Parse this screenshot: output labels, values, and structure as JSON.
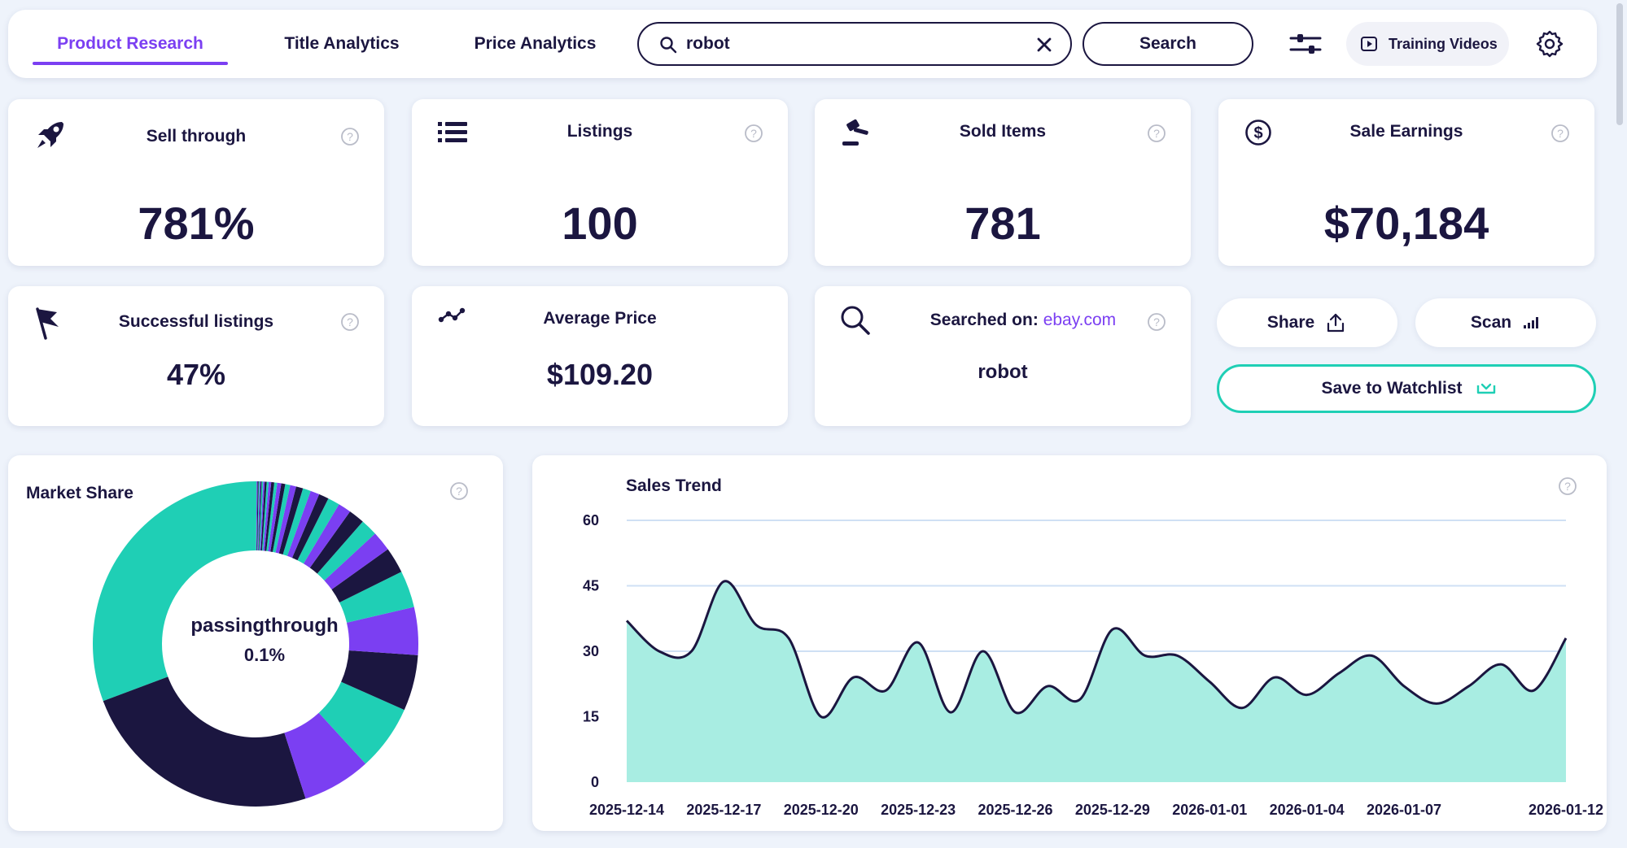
{
  "tabs": [
    {
      "label": "Product Research",
      "active": true
    },
    {
      "label": "Title Analytics",
      "active": false
    },
    {
      "label": "Price Analytics",
      "active": false
    }
  ],
  "search": {
    "value": "robot",
    "placeholder": "",
    "button_label": "Search"
  },
  "toolbar": {
    "training_label": "Training Videos",
    "filter_icon": "sliders-icon",
    "settings_icon": "gear-icon"
  },
  "stats": {
    "sell_through": {
      "title": "Sell through",
      "value": "781%",
      "icon": "rocket-icon"
    },
    "listings": {
      "title": "Listings",
      "value": "100",
      "icon": "list-icon"
    },
    "sold_items": {
      "title": "Sold Items",
      "value": "781",
      "icon": "gavel-icon"
    },
    "sale_earnings": {
      "title": "Sale Earnings",
      "value": "$70,184",
      "icon": "dollar-icon"
    },
    "successful_listings": {
      "title": "Successful listings",
      "value": "47%",
      "icon": "flag-icon"
    },
    "average_price": {
      "title": "Average Price",
      "value": "$109.20",
      "icon": "trend-icon"
    },
    "searched_on": {
      "title": "Searched on:",
      "site": "ebay.com",
      "value": "robot",
      "icon": "search-icon"
    }
  },
  "actions": {
    "share_label": "Share",
    "scan_label": "Scan",
    "watchlist_label": "Save to Watchlist"
  },
  "colors": {
    "accent": "#7b3ff2",
    "teal": "#1fcfb5",
    "navy": "#1b1640",
    "area": "#a8ede2",
    "grid": "#cfe0f4"
  },
  "market_share": {
    "title": "Market Share",
    "center_label": "passingthrough",
    "center_value": "0.1%"
  },
  "chart_data": [
    {
      "type": "pie",
      "title": "Market Share",
      "slices_percent": [
        31.0,
        24.5,
        6.9,
        6.6,
        5.6,
        4.8,
        3.7,
        2.6,
        2.0,
        1.7,
        1.6,
        1.3,
        1.2,
        1.0,
        0.9,
        0.8,
        0.7,
        0.6,
        0.5,
        0.4,
        0.4,
        0.3,
        0.3,
        0.25,
        0.2,
        0.2,
        0.15,
        0.15,
        0.1,
        0.1,
        0.1,
        0.1,
        0.1,
        0.1
      ],
      "highlighted": {
        "label": "passingthrough",
        "value": "0.1%"
      }
    },
    {
      "type": "area",
      "title": "Sales Trend",
      "xlabel": "",
      "ylabel": "",
      "x_ticks": [
        "2025-12-14",
        "2025-12-17",
        "2025-12-20",
        "2025-12-23",
        "2025-12-26",
        "2025-12-29",
        "2026-01-01",
        "2026-01-04",
        "2026-01-07",
        "2026-01-12"
      ],
      "y_ticks": [
        "60",
        "45",
        "30",
        "15",
        "0"
      ],
      "ylim": [
        0,
        60
      ],
      "x": [
        "2025-12-14",
        "2025-12-15",
        "2025-12-16",
        "2025-12-17",
        "2025-12-18",
        "2025-12-19",
        "2025-12-20",
        "2025-12-21",
        "2025-12-22",
        "2025-12-23",
        "2025-12-24",
        "2025-12-25",
        "2025-12-26",
        "2025-12-27",
        "2025-12-28",
        "2025-12-29",
        "2025-12-30",
        "2025-12-31",
        "2026-01-01",
        "2026-01-02",
        "2026-01-03",
        "2026-01-04",
        "2026-01-05",
        "2026-01-06",
        "2026-01-07",
        "2026-01-08",
        "2026-01-09",
        "2026-01-10",
        "2026-01-11",
        "2026-01-12"
      ],
      "values": [
        37,
        30,
        30,
        46,
        36,
        33,
        15,
        24,
        21,
        32,
        16,
        30,
        16,
        22,
        19,
        35,
        29,
        29,
        23,
        17,
        24,
        20,
        25,
        29,
        22,
        18,
        22,
        27,
        21,
        33
      ],
      "grid": true
    }
  ]
}
